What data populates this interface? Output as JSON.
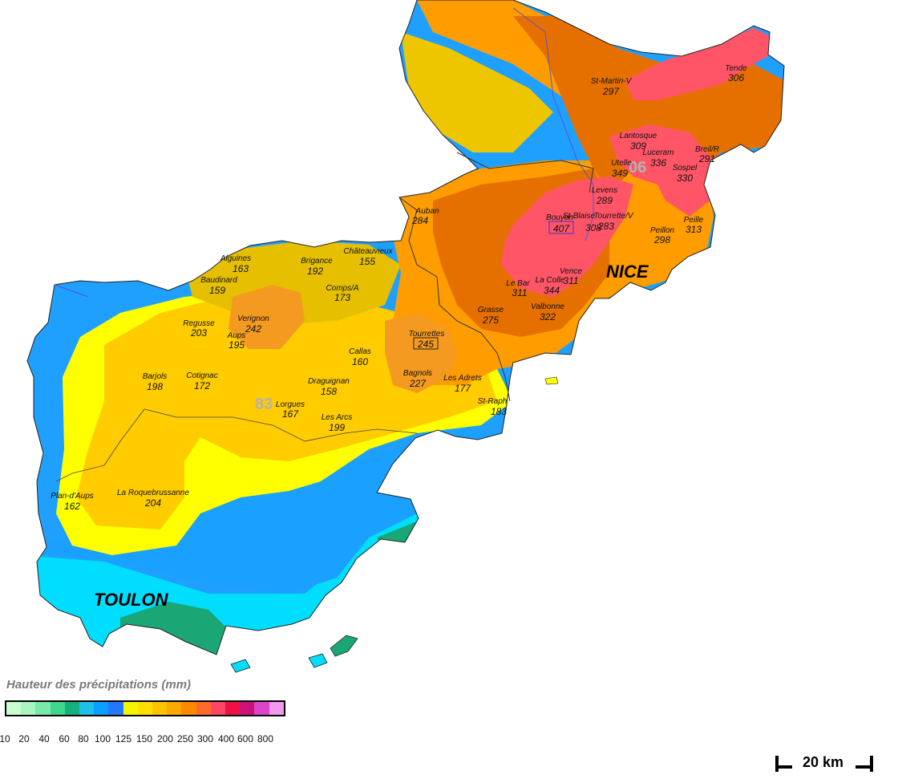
{
  "legend": {
    "title": "Hauteur des précipitations (mm)",
    "ticks": [
      "10",
      "20",
      "40",
      "60",
      "80",
      "100",
      "125",
      "150",
      "200",
      "250",
      "300",
      "400",
      "600",
      "800"
    ],
    "colors": [
      "#c8ffd0",
      "#a8f5c0",
      "#7ae8a8",
      "#3fd68c",
      "#14b27a",
      "#1fc0e8",
      "#0aa0ff",
      "#2478ff",
      "#f5f500",
      "#ffe000",
      "#ffc400",
      "#ffaa00",
      "#ff8a00",
      "#ff6a2a",
      "#ff4466",
      "#ee1144",
      "#cc1177",
      "#dd44cc",
      "#f099ee"
    ]
  },
  "scale": {
    "label": "20 km"
  },
  "cities": [
    {
      "name": "NICE"
    },
    {
      "name": "TOULON"
    }
  ],
  "departments": [
    "06",
    "83"
  ],
  "stations": [
    {
      "name": "Tende",
      "value": "306"
    },
    {
      "name": "St-Martin-V",
      "value": "297"
    },
    {
      "name": "Lantosque",
      "value": "309"
    },
    {
      "name": "Breil/R",
      "value": "291"
    },
    {
      "name": "Luceram",
      "value": "336"
    },
    {
      "name": "Utelle",
      "value": "349"
    },
    {
      "name": "Sospel",
      "value": "330"
    },
    {
      "name": "Levens",
      "value": "289"
    },
    {
      "name": "Auban",
      "value": "284"
    },
    {
      "name": "Bouyon",
      "value": "407"
    },
    {
      "name": "St-Blaise",
      "value": "308"
    },
    {
      "name": "Tourrette/V",
      "value": "283"
    },
    {
      "name": "Peille",
      "value": "313"
    },
    {
      "name": "Peillon",
      "value": "298"
    },
    {
      "name": "Châteauvieux",
      "value": "155"
    },
    {
      "name": "Brigance",
      "value": "192"
    },
    {
      "name": "Aiguines",
      "value": "163"
    },
    {
      "name": "Baudinard",
      "value": "159"
    },
    {
      "name": "Comps/A",
      "value": "173"
    },
    {
      "name": "Vence",
      "value": "311"
    },
    {
      "name": "La Colle",
      "value": "344"
    },
    {
      "name": "Le Bar",
      "value": "311"
    },
    {
      "name": "Grasse",
      "value": "275"
    },
    {
      "name": "Valbonne",
      "value": "322"
    },
    {
      "name": "Verignon",
      "value": "242"
    },
    {
      "name": "Regusse",
      "value": "203"
    },
    {
      "name": "Aups",
      "value": "195"
    },
    {
      "name": "Tourrettes",
      "value": "245"
    },
    {
      "name": "Callas",
      "value": "160"
    },
    {
      "name": "Barjols",
      "value": "198"
    },
    {
      "name": "Cotignac",
      "value": "172"
    },
    {
      "name": "Draguignan",
      "value": "158"
    },
    {
      "name": "Bagnols",
      "value": "227"
    },
    {
      "name": "Les Adrets",
      "value": "177"
    },
    {
      "name": "St-Raph",
      "value": "183"
    },
    {
      "name": "Lorgues",
      "value": "167"
    },
    {
      "name": "Les Arcs",
      "value": "199"
    },
    {
      "name": "Plan-d'Aups",
      "value": "162"
    },
    {
      "name": "La Roquebrussanne",
      "value": "204"
    }
  ]
}
